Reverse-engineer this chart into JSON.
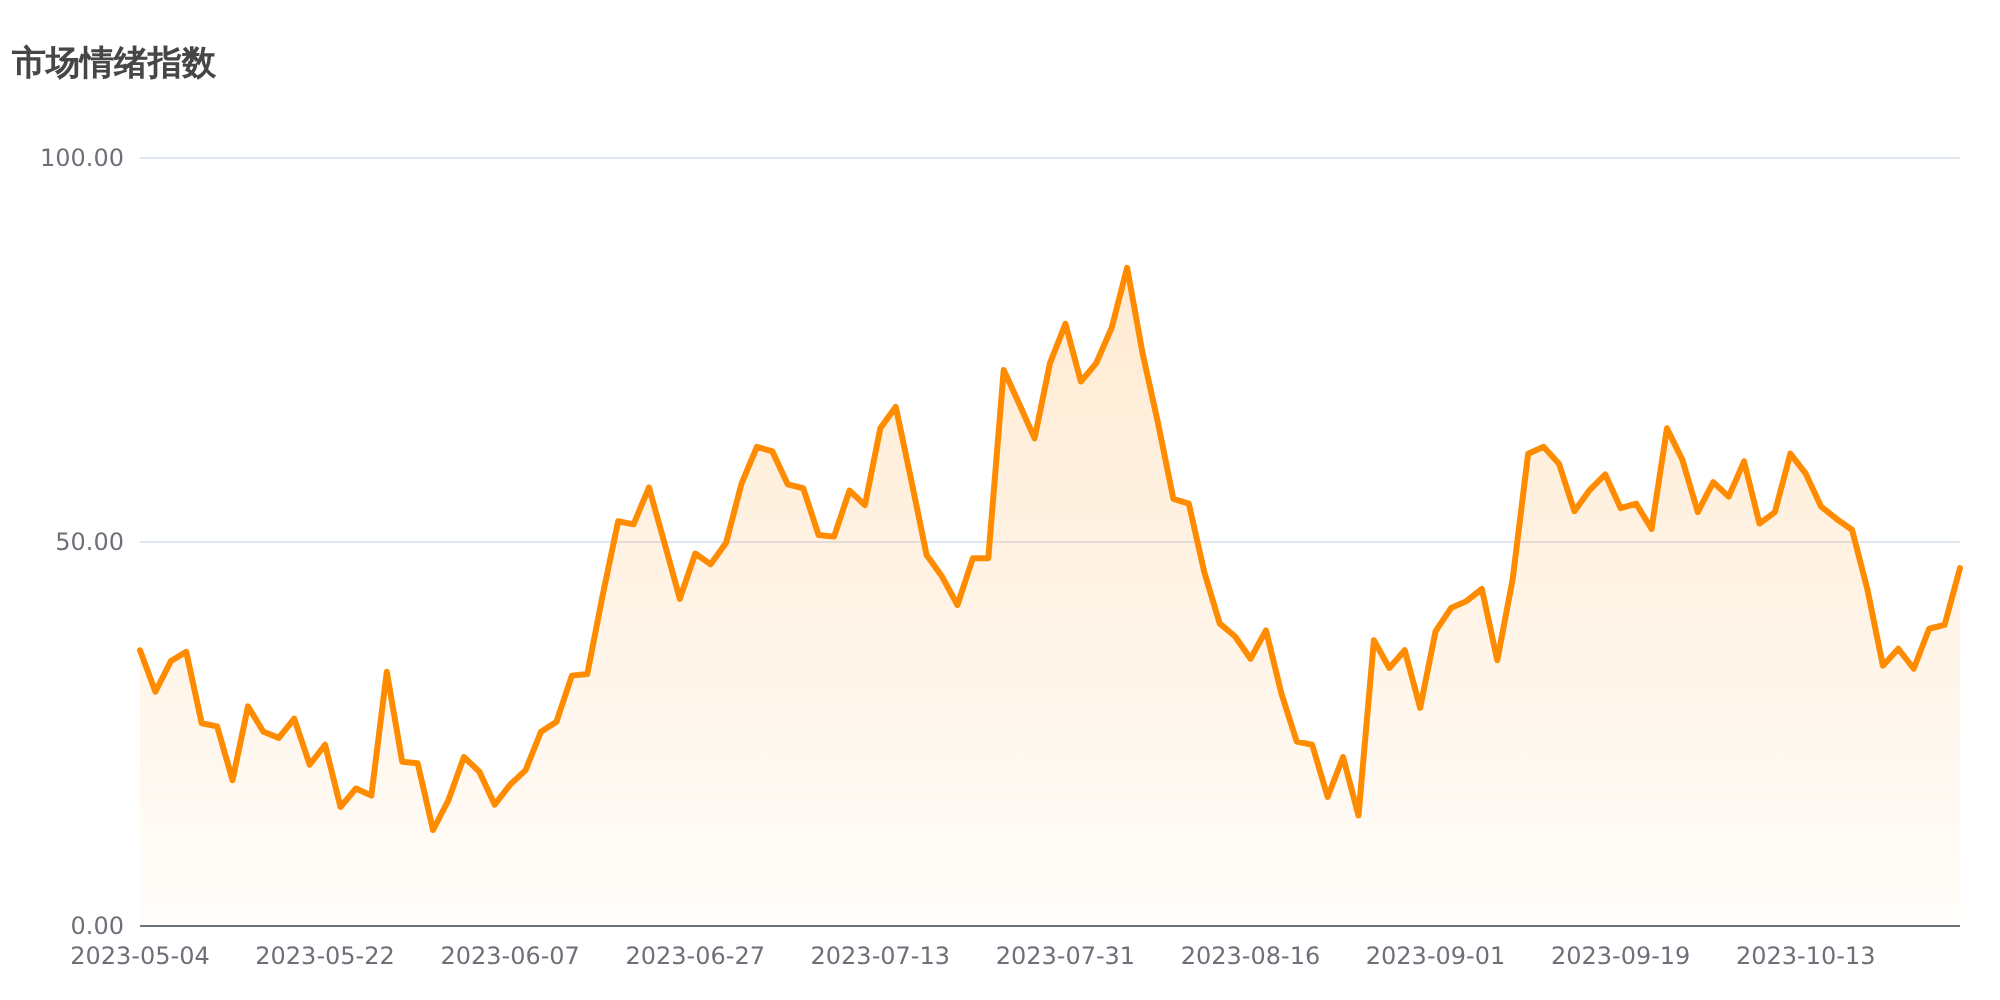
{
  "chart_data": {
    "type": "area",
    "title": "市场情绪指数",
    "categories": [
      "2023-05-04",
      null,
      null,
      null,
      null,
      null,
      null,
      null,
      null,
      null,
      null,
      null,
      "2023-05-22",
      null,
      null,
      null,
      null,
      null,
      null,
      null,
      null,
      null,
      null,
      null,
      "2023-06-07",
      null,
      null,
      null,
      null,
      null,
      null,
      null,
      null,
      null,
      null,
      null,
      "2023-06-27",
      null,
      null,
      null,
      null,
      null,
      null,
      null,
      null,
      null,
      null,
      null,
      "2023-07-13",
      null,
      null,
      null,
      null,
      null,
      null,
      null,
      null,
      null,
      null,
      null,
      "2023-07-31",
      null,
      null,
      null,
      null,
      null,
      null,
      null,
      null,
      null,
      null,
      null,
      "2023-08-16",
      null,
      null,
      null,
      null,
      null,
      null,
      null,
      null,
      null,
      null,
      null,
      "2023-09-01",
      null,
      null,
      null,
      null,
      null,
      null,
      null,
      null,
      null,
      null,
      null,
      "2023-09-19",
      null,
      null,
      null,
      null,
      null,
      null,
      null,
      null,
      null,
      null,
      null,
      "2023-10-13",
      null,
      null,
      null,
      null,
      null,
      null,
      null,
      null,
      null,
      null
    ],
    "series": [
      {
        "color": "#ff8c00",
        "values": [
          35.9,
          30.5,
          34.5,
          35.7,
          26.4,
          26.0,
          19.0,
          28.6,
          25.3,
          24.5,
          27.0,
          21.0,
          23.6,
          15.5,
          17.9,
          17.0,
          33.1,
          21.4,
          21.2,
          12.5,
          16.4,
          22.0,
          20.1,
          15.8,
          18.4,
          20.3,
          25.3,
          26.6,
          32.6,
          32.8,
          43.1,
          52.7,
          52.3,
          57.1,
          49.9,
          42.6,
          48.5,
          47.1,
          49.9,
          57.6,
          62.4,
          61.8,
          57.5,
          57.0,
          50.9,
          50.7,
          56.7,
          54.8,
          64.8,
          67.6,
          58.1,
          48.3,
          45.5,
          41.8,
          47.9,
          47.9,
          72.4,
          68.0,
          63.5,
          73.3,
          78.4,
          70.9,
          73.3,
          77.9,
          85.7,
          74.6,
          65.5,
          55.6,
          55.0,
          46.1,
          39.4,
          37.7,
          34.8,
          38.5,
          30.3,
          24.0,
          23.6,
          16.8,
          22.0,
          14.4,
          37.2,
          33.6,
          35.9,
          28.4,
          38.4,
          41.4,
          42.3,
          43.9,
          34.6,
          45.2,
          61.5,
          62.4,
          60.2,
          54.0,
          56.8,
          58.8,
          54.4,
          55.0,
          51.7,
          64.8,
          60.7,
          53.9,
          57.8,
          55.9,
          60.5,
          52.4,
          53.9,
          61.5,
          58.9,
          54.6,
          53.0,
          51.6,
          43.8,
          33.9,
          36.1,
          33.5,
          38.7,
          39.2,
          46.6
        ]
      }
    ],
    "ylim": [
      0,
      100
    ],
    "yticks": [
      {
        "value": 0,
        "label": "0.00"
      },
      {
        "value": 50,
        "label": "50.00"
      },
      {
        "value": 100,
        "label": "100.00"
      }
    ],
    "grid": "y"
  }
}
